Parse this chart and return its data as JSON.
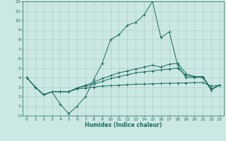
{
  "xlabel": "Humidex (Indice chaleur)",
  "background_color": "#cce8e4",
  "grid_color": "#aacfcb",
  "line_color": "#1a6b5e",
  "xlim": [
    -0.5,
    23.5
  ],
  "ylim": [
    0,
    12
  ],
  "xticks": [
    0,
    1,
    2,
    3,
    4,
    5,
    6,
    7,
    8,
    9,
    10,
    11,
    12,
    13,
    14,
    15,
    16,
    17,
    18,
    19,
    20,
    21,
    22,
    23
  ],
  "yticks": [
    0,
    1,
    2,
    3,
    4,
    5,
    6,
    7,
    8,
    9,
    10,
    11,
    12
  ],
  "line1_x": [
    0,
    1,
    2,
    3,
    4,
    5,
    6,
    7,
    8,
    9,
    10,
    11,
    12,
    13,
    14,
    15,
    16,
    17,
    18,
    19,
    20,
    21,
    22,
    23
  ],
  "line1_y": [
    4,
    3,
    2.2,
    2.5,
    1.2,
    0.2,
    1.0,
    2.0,
    3.8,
    5.5,
    8.0,
    8.5,
    9.5,
    9.8,
    10.6,
    12.0,
    8.2,
    8.8,
    5.3,
    4.0,
    4.0,
    4.0,
    2.7,
    3.2
  ],
  "line2_x": [
    0,
    1,
    2,
    3,
    4,
    5,
    6,
    7,
    8,
    9,
    10,
    11,
    12,
    13,
    14,
    15,
    16,
    17,
    18,
    19,
    20,
    21,
    22,
    23
  ],
  "line2_y": [
    4.0,
    3.0,
    2.2,
    2.5,
    2.5,
    2.5,
    2.8,
    2.9,
    3.0,
    3.1,
    3.15,
    3.2,
    3.25,
    3.3,
    3.32,
    3.35,
    3.38,
    3.4,
    3.42,
    3.44,
    3.46,
    3.48,
    3.1,
    3.2
  ],
  "line3_x": [
    0,
    1,
    2,
    3,
    4,
    5,
    6,
    7,
    8,
    9,
    10,
    11,
    12,
    13,
    14,
    15,
    16,
    17,
    18,
    19,
    20,
    21,
    22,
    23
  ],
  "line3_y": [
    4.0,
    3.0,
    2.2,
    2.5,
    2.5,
    2.5,
    2.9,
    3.1,
    3.3,
    3.6,
    3.9,
    4.1,
    4.3,
    4.5,
    4.6,
    4.7,
    4.8,
    4.9,
    5.0,
    4.2,
    4.1,
    4.1,
    2.8,
    3.2
  ],
  "line4_x": [
    0,
    1,
    2,
    3,
    4,
    5,
    6,
    7,
    8,
    9,
    10,
    11,
    12,
    13,
    14,
    15,
    16,
    17,
    18,
    19,
    20,
    21,
    22,
    23
  ],
  "line4_y": [
    4.0,
    3.0,
    2.2,
    2.5,
    2.5,
    2.5,
    2.9,
    3.2,
    3.5,
    3.9,
    4.2,
    4.5,
    4.7,
    4.9,
    5.1,
    5.3,
    5.1,
    5.4,
    5.5,
    4.4,
    4.1,
    4.1,
    2.8,
    3.2
  ]
}
